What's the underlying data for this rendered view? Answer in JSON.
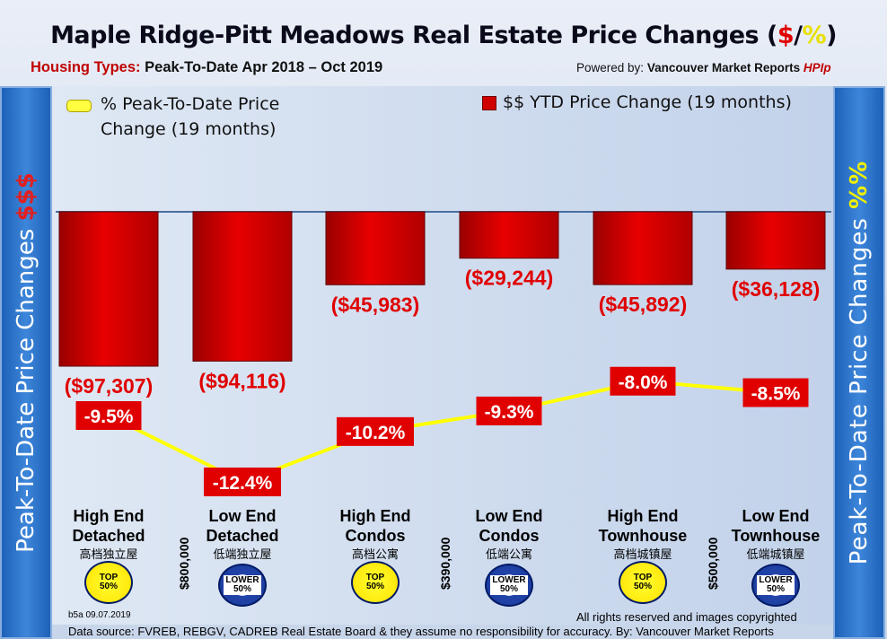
{
  "title": {
    "pre": "Maple Ridge-Pitt Meadows Real Estate Price Changes (",
    "dollar": "$",
    "slash": "/",
    "pct": "%",
    "post": ")"
  },
  "subtitle": {
    "label": "Housing Types:",
    "range": "Peak-To-Date Apr 2018 – Oct 2019"
  },
  "powered": {
    "pre": "Powered by:",
    "brand": "Vancouver Market Reports",
    "hpi": "HPIp"
  },
  "left_axis": {
    "text": "Peak-To-Date Price Changes ",
    "symbol": "$$$"
  },
  "right_axis": {
    "text": "Peak-To-Date  Price  Changes ",
    "symbol": "%%"
  },
  "legend": {
    "line_label": "% Peak-To-Date Price Change (19 months)",
    "bar_label": "$$ YTD Price Change (19 months)"
  },
  "colors": {
    "bar": "#e00000",
    "line": "#ffff00",
    "label_box": "#e00000",
    "baseline": "#4a6fa0"
  },
  "chart_data": {
    "type": "bar",
    "categories": [
      "High End Detached",
      "Low End Detached",
      "High End Condos",
      "Low End Condos",
      "High End Townhouse",
      "Low End Townhouse"
    ],
    "series": [
      {
        "name": "$$ YTD Price Change (19 months)",
        "values": [
          -97307,
          -94116,
          -45983,
          -29244,
          -45892,
          -36128
        ],
        "labels": [
          "($97,307)",
          "($94,116)",
          "($45,983)",
          "($29,244)",
          "($45,892)",
          "($36,128)"
        ]
      },
      {
        "name": "% Peak-To-Date Price Change (19 months)",
        "type": "line",
        "values": [
          -9.5,
          -12.4,
          -10.2,
          -9.3,
          -8.0,
          -8.5
        ],
        "labels": [
          "-9.5%",
          "-12.4%",
          "-10.2%",
          "-9.3%",
          "-8.0%",
          "-8.5%"
        ]
      }
    ]
  },
  "categories_display": [
    {
      "line1": "High End",
      "line2": "Detached",
      "cn": "高档独立屋",
      "badge": "TOP 50%"
    },
    {
      "line1": "Low End",
      "line2": "Detached",
      "cn": "低端独立屋",
      "badge": "LOWER 50%"
    },
    {
      "line1": "High End",
      "line2": "Condos",
      "cn": "高档公寓",
      "badge": "TOP 50%"
    },
    {
      "line1": "Low End",
      "line2": "Condos",
      "cn": "低端公寓",
      "badge": "LOWER 50%"
    },
    {
      "line1": "High End",
      "line2": "Townhouse",
      "cn": "高档城镇屋",
      "badge": "TOP 50%"
    },
    {
      "line1": "Low End",
      "line2": "Townhouse",
      "cn": "低端城镇屋",
      "badge": "LOWER 50%"
    }
  ],
  "price_splits": [
    "$800,000",
    "$390,000",
    "$500,000"
  ],
  "footer": {
    "code": "b5a 09.07.2019",
    "rights": "All rights reserved and  images copyrighted",
    "source": "Data source: FVREB, REBGV, CADREB Real Estate Board & they assume no responsibility for accuracy. By: Vancouver Market Reports"
  }
}
